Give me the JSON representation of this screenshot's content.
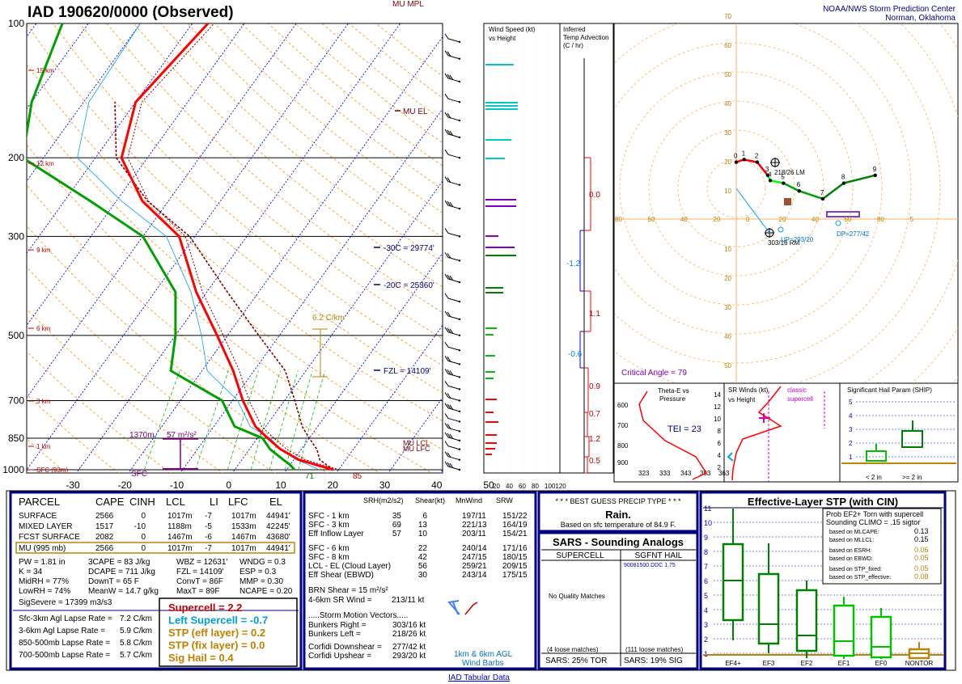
{
  "header": {
    "title": "IAD   190620/0000  (Observed)",
    "org_line1": "NOAA/NWS Storm Prediction Center",
    "org_line2": "Norman, Oklahoma",
    "footer_link": "IAD Tabular Data"
  },
  "colors": {
    "temperature": "#ff0000",
    "dewpoint": "#00a000",
    "virtual_temp": "#800000",
    "isotherm": "#0000ff",
    "dry_adiabat": "#ff8c00",
    "mixing_ratio": "#00c000",
    "navy": "#000080",
    "gold": "#b8860b",
    "purple": "#800080"
  },
  "skewt": {
    "pressure_labels": [
      "100",
      "200",
      "300",
      "500",
      "700",
      "850",
      "1000"
    ],
    "height_labels": [
      "15 km",
      "12 km",
      "9 km",
      "6 km",
      "3 km",
      "1 km",
      "SFC (93m)"
    ],
    "temp_labels": [
      "-30",
      "-20",
      "-10",
      "0",
      "10",
      "20",
      "30",
      "40",
      "50"
    ],
    "annotations": {
      "mu_mpl": "MU MPL",
      "mu_el": "MU EL",
      "m30c": "-30C = 29774'",
      "m20c": "-20C = 25360'",
      "fzl": "FZL = 14109'",
      "mu_lcl": "MU LCL",
      "mu_lfc": "MU LFC",
      "lapse": "6.2 C/km",
      "srh_height": "1370m",
      "srh_value": "57 m²/s²",
      "sfc": "SFC",
      "sfc_dew": "71",
      "sfc_temp": "85"
    }
  },
  "chart_data": [
    {
      "type": "line",
      "title": "Skew-T Log-P",
      "xlabel": "",
      "ylabel": "",
      "y_scale": "log",
      "ylim": [
        1000,
        100
      ],
      "xlim": [
        -30,
        50
      ],
      "series": [
        {
          "name": "Temperature",
          "x": [
            29,
            25,
            21,
            16,
            12,
            8,
            2,
            -4,
            -12,
            -22,
            -33,
            -45,
            -55,
            -60,
            -57
          ],
          "y": [
            1000,
            975,
            950,
            900,
            850,
            800,
            700,
            600,
            500,
            400,
            300,
            250,
            200,
            150,
            100
          ]
        },
        {
          "name": "Dewpoint",
          "x": [
            21.5,
            20,
            18,
            14,
            11,
            4,
            -2,
            -16,
            -20,
            -26,
            -40,
            -55,
            -74,
            -80,
            -85
          ],
          "y": [
            1000,
            975,
            950,
            900,
            850,
            800,
            700,
            600,
            500,
            400,
            300,
            250,
            200,
            150,
            100
          ]
        },
        {
          "name": "Parcel",
          "x": [
            29,
            25,
            23,
            20,
            17,
            12,
            6,
            -4,
            -16,
            -31,
            -44,
            -56,
            -64
          ],
          "y": [
            1000,
            950,
            900,
            850,
            800,
            700,
            600,
            500,
            400,
            300,
            250,
            200,
            150
          ]
        }
      ]
    },
    {
      "type": "line",
      "title": "",
      "xlabel": "",
      "ylabel": "",
      "xlim": [
        -10,
        50
      ],
      "ylim": [
        -10,
        70
      ],
      "series": [
        {
          "name": "Hodograph",
          "x": [
            0,
            3,
            8,
            12,
            13,
            18,
            24,
            33,
            41,
            53
          ],
          "y": [
            10,
            11,
            10,
            5,
            3,
            2,
            -1,
            -4,
            2,
            5
          ],
          "labels": [
            "0",
            "1",
            "2",
            "3",
            "4",
            "5",
            "6",
            "7",
            "8",
            "9"
          ]
        }
      ],
      "annotations": [
        "218/26 LM",
        "303/16 RM",
        "DP=277/42",
        "UP=293/20",
        "Critical Angle = 79"
      ]
    },
    {
      "type": "bar",
      "title": "Significant Hail Param (SHIP)",
      "categories": [
        "< 2 in",
        ">= 2 in"
      ],
      "values": [
        0.9,
        2.4
      ],
      "ylim": [
        0,
        5
      ]
    },
    {
      "type": "bar",
      "title": "Effective-Layer STP (with CIN)",
      "categories": [
        "EF4+",
        "EF3",
        "EF2",
        "EF1",
        "EF0",
        "NONTOR"
      ],
      "values": [
        5.3,
        2.4,
        1.7,
        1.2,
        0.8,
        0.3
      ],
      "ylim": [
        0,
        11
      ]
    }
  ],
  "panels": {
    "wind_speed_title": [
      "Wind Speed (kt)",
      "vs Height"
    ],
    "wind_axis": [
      "20",
      "40",
      "60",
      "80",
      "100120"
    ],
    "temp_adv_title": [
      "Inferred",
      "Temp Advection",
      "(C / hr)"
    ],
    "temp_adv_values": [
      "0.0",
      "-1.2",
      "1.1",
      "-0.6",
      "0.9",
      "0.7",
      "1.2",
      "0.5"
    ],
    "hodo_rings": [
      "10",
      "20",
      "30",
      "40",
      "50",
      "60",
      "70"
    ],
    "hodo_axis": [
      "80",
      "60",
      "40",
      "20",
      "0",
      "20",
      "40",
      "60",
      "80",
      "5"
    ],
    "theta_title": [
      "Theta-E vs",
      "Pressure"
    ],
    "theta_tei": "TEI = 23",
    "theta_p": [
      "600",
      "700",
      "800",
      "900"
    ],
    "theta_x": [
      "323",
      "333",
      "343",
      "353",
      "363"
    ],
    "srw_title": [
      "SR Winds (kt)",
      "vs Height"
    ],
    "srw_classic": [
      "classic",
      "supercell"
    ],
    "srw_h": [
      "14",
      "12",
      "10",
      "8",
      "6",
      "4",
      "2"
    ]
  },
  "parcels": {
    "headers": [
      "PARCEL",
      "CAPE",
      "CINH",
      "LCL",
      "LI",
      "LFC",
      "EL"
    ],
    "rows": [
      [
        "SURFACE",
        "2566",
        "0",
        "1017m",
        "-7",
        "1017m",
        "44941'"
      ],
      [
        "MIXED LAYER",
        "1517",
        "-10",
        "1188m",
        "-5",
        "1533m",
        "42245'"
      ],
      [
        "FCST SURFACE",
        "2082",
        "0",
        "1467m",
        "-6",
        "1467m",
        "43680'"
      ],
      [
        "MU   (995 mb)",
        "2566",
        "0",
        "1017m",
        "-7",
        "1017m",
        "44941'"
      ]
    ],
    "indices": [
      [
        "PW = 1.81 in",
        "3CAPE = 83 J/kg",
        "WBZ = 12631'",
        "WNDG = 0.3"
      ],
      [
        "K = 34",
        "DCAPE = 711 J/kg",
        "FZL = 14109'",
        "ESP = 0.3"
      ],
      [
        "MidRH = 77%",
        "DownT = 65 F",
        "ConvT = 86F",
        "MMP = 0.30"
      ],
      [
        "LowRH = 74%",
        "MeanW = 14.7 g/kg",
        "MaxT = 89F",
        "NCAPE = 0.20"
      ]
    ],
    "sigsevere": "SigSevere = 17399 m3/s3",
    "lapse_rates": [
      [
        "Sfc-3km Agl Lapse Rate =",
        "7.2 C/km"
      ],
      [
        "3-6km Agl Lapse Rate =",
        "5.9 C/km"
      ],
      [
        "850-500mb Lapse Rate =",
        "5.8 C/km"
      ],
      [
        "700-500mb Lapse Rate =",
        "5.7 C/km"
      ]
    ],
    "composites": [
      "Supercell = 2.2",
      "Left Supercell = -0.7",
      "STP (eff layer) = 0.2",
      "STP (fix layer) = 0.0",
      "Sig Hail = 0.4"
    ]
  },
  "kinematics": {
    "headers": [
      "SRH(m2/s2)",
      "Shear(kt)",
      "MnWind",
      "SRW"
    ],
    "rows": [
      [
        "SFC - 1 km",
        "35",
        "6",
        "197/11",
        "151/22"
      ],
      [
        "SFC - 3 km",
        "69",
        "13",
        "221/13",
        "164/19"
      ],
      [
        "Eff Inflow Layer",
        "57",
        "10",
        "203/11",
        "154/21"
      ],
      [
        "SFC - 6 km",
        "22",
        "240/14",
        "171/16"
      ],
      [
        "SFC - 8 km",
        "42",
        "247/15",
        "180/15"
      ],
      [
        "LCL - EL (Cloud Layer)",
        "56",
        "259/21",
        "209/15"
      ],
      [
        "Eff Shear (EBWD)",
        "30",
        "243/14",
        "175/15"
      ]
    ],
    "brn": "BRN Shear = 15 m²/s²",
    "srwind_label": "4-6km SR Wind =",
    "srwind_value": "213/11 kt",
    "motion_title": ".....Storm Motion Vectors.....",
    "motions": [
      [
        "Bunkers Right =",
        "303/16 kt"
      ],
      [
        "Bunkers Left =",
        "218/26 kt"
      ],
      [
        "Corfidi Downshear =",
        "277/42 kt"
      ],
      [
        "Corfidi Upshear =",
        "293/20 kt"
      ]
    ],
    "barbs_label": [
      "1km & 6km AGL",
      "Wind Barbs"
    ]
  },
  "precip": {
    "title": "* * * BEST GUESS PRECIP TYPE * * *",
    "value": "Rain.",
    "note": "Based on sfc temperature of 84.9 F."
  },
  "sars": {
    "title": "SARS - Sounding Analogs",
    "col1": "SUPERCELL",
    "col2": "SGFNT HAIL",
    "hail_match": "90081500.DDC  1.75",
    "no_match": "No Quality Matches",
    "loose1": "(4 loose matches)",
    "loose2": "(111 loose matches)",
    "tor": "SARS:  25% TOR",
    "sig": "SARS:  19% SIG"
  },
  "stp": {
    "title": "Effective-Layer STP (with CIN)",
    "prob_title": [
      "Prob EF2+ Torn with supercell",
      "Sounding CLIMO = .15 sigtor"
    ],
    "probs": [
      [
        "based on MLCAPE:",
        "0.13"
      ],
      [
        "based on MLLCL:",
        "0.15"
      ],
      [
        "based on ESRH:",
        "0.06"
      ],
      [
        "based on EBWD:",
        "0.05"
      ],
      [
        "based on STP_fixed:",
        "0.05"
      ],
      [
        "based on STP_effective:",
        "0.08"
      ]
    ],
    "y_ticks": [
      "11",
      "10",
      "9",
      "8",
      "7",
      "6",
      "5",
      "4",
      "3",
      "2",
      "1"
    ],
    "x_labels": [
      "EF4+",
      "EF3",
      "EF2",
      "EF1",
      "EF0",
      "NONTOR"
    ]
  },
  "ship": {
    "title": "Significant Hail Param (SHIP)",
    "y_ticks": [
      "5",
      "4",
      "3",
      "2",
      "1"
    ],
    "x_labels": [
      "< 2 in",
      ">= 2 in"
    ]
  }
}
